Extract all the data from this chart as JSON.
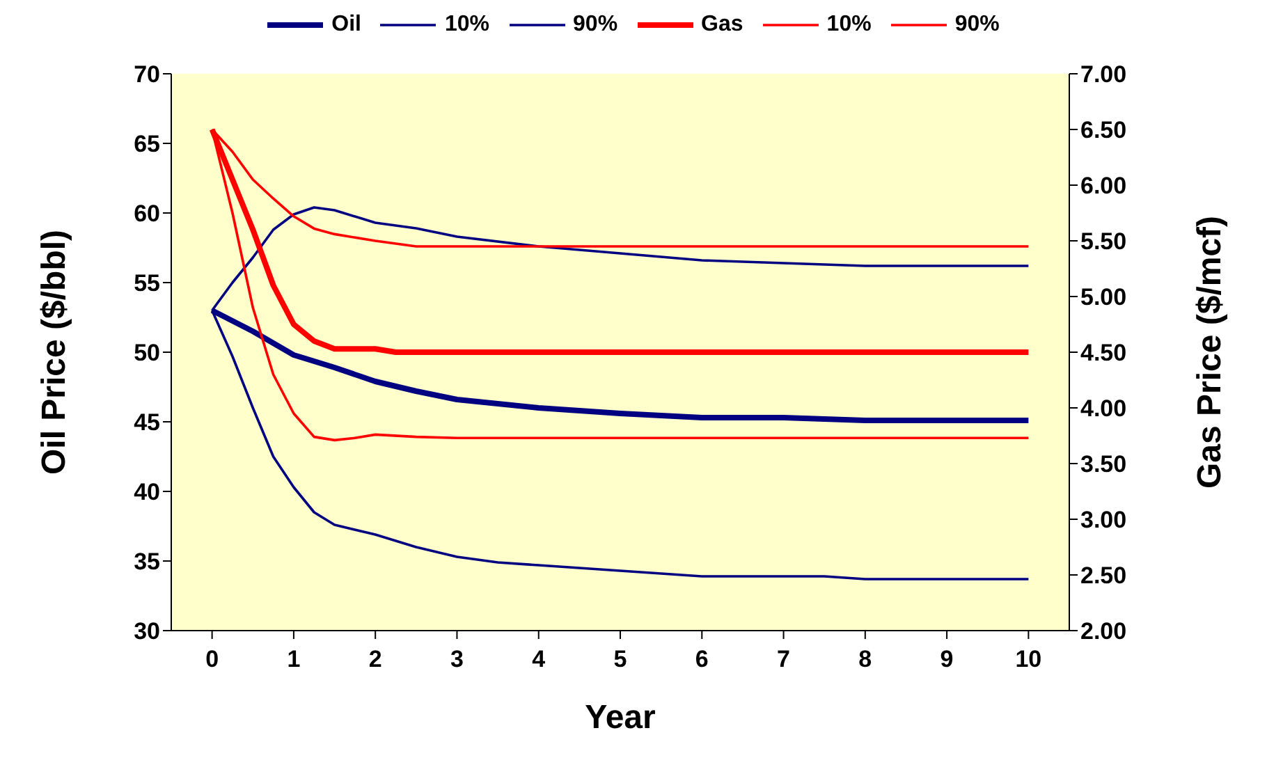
{
  "chart_data": {
    "type": "line",
    "xlabel": "Year",
    "ylabel": "Oil Price ($/bbl)",
    "y2label": "Gas Price ($/mcf)",
    "xlim": [
      -0.5,
      10.5
    ],
    "xticks": [
      0,
      1,
      2,
      3,
      4,
      5,
      6,
      7,
      8,
      9,
      10
    ],
    "ylim": [
      30,
      70
    ],
    "yticks": [
      30,
      35,
      40,
      45,
      50,
      55,
      60,
      65,
      70
    ],
    "y2lim": [
      2,
      7
    ],
    "y2ticks": [
      {
        "value": 2,
        "label": "2.00"
      },
      {
        "value": 2.5,
        "label": "2.50"
      },
      {
        "value": 3,
        "label": "3.00"
      },
      {
        "value": 3.5,
        "label": "3.50"
      },
      {
        "value": 4,
        "label": "4.00"
      },
      {
        "value": 4.5,
        "label": "4.50"
      },
      {
        "value": 5,
        "label": "5.00"
      },
      {
        "value": 5.5,
        "label": "5.50"
      },
      {
        "value": 6,
        "label": "6.00"
      },
      {
        "value": 6.5,
        "label": "6.50"
      },
      {
        "value": 7,
        "label": "7.00"
      }
    ],
    "grid": false,
    "legend": "top",
    "marker": "none",
    "line_style": "solid",
    "series": [
      {
        "name": "Oil",
        "color": "#000080",
        "x": [
          0,
          0.5,
          1,
          1.5,
          2,
          2.5,
          3,
          4,
          5,
          6,
          7,
          8,
          9,
          10
        ],
        "values": [
          53,
          51.5,
          49.8,
          48.9,
          47.9,
          47.2,
          46.6,
          46.0,
          45.6,
          45.3,
          45.3,
          45.1,
          45.1,
          45.1
        ]
      },
      {
        "name": "10%",
        "color": "#000080",
        "x": [
          0,
          0.25,
          0.5,
          0.75,
          1,
          1.25,
          1.5,
          2,
          2.5,
          3,
          3.5,
          4,
          5,
          6,
          7,
          7.5,
          8,
          9,
          10
        ],
        "values": [
          53,
          49.7,
          46,
          42.5,
          40.3,
          38.5,
          37.6,
          36.9,
          36.0,
          35.3,
          34.9,
          34.7,
          34.3,
          33.9,
          33.9,
          33.9,
          33.7,
          33.7,
          33.7
        ]
      },
      {
        "name": "90%",
        "color": "#000080",
        "x": [
          0,
          0.25,
          0.5,
          0.75,
          1,
          1.25,
          1.5,
          2,
          2.5,
          3,
          4,
          5,
          6,
          7,
          8,
          9,
          10
        ],
        "values": [
          53,
          55,
          56.8,
          58.8,
          59.9,
          60.4,
          60.2,
          59.3,
          58.9,
          58.3,
          57.6,
          57.1,
          56.6,
          56.4,
          56.2,
          56.2,
          56.2
        ]
      },
      {
        "name": "Gas",
        "color": "#ff0000",
        "axis": "y2",
        "x": [
          0,
          0.25,
          0.5,
          0.75,
          1,
          1.25,
          1.5,
          2,
          2.25,
          3,
          4,
          5,
          6,
          7,
          8,
          9,
          10
        ],
        "values": [
          6.5,
          6.05,
          5.6,
          5.1,
          4.75,
          4.6,
          4.53,
          4.53,
          4.5,
          4.5,
          4.5,
          4.5,
          4.5,
          4.5,
          4.5,
          4.5,
          4.5
        ]
      },
      {
        "name": "10%",
        "color": "#ff0000",
        "axis": "y2",
        "x": [
          0,
          0.25,
          0.5,
          0.75,
          1,
          1.25,
          1.5,
          1.75,
          2,
          2.5,
          3,
          4,
          5,
          6,
          7,
          8,
          9,
          10
        ],
        "values": [
          6.5,
          5.75,
          4.9,
          4.3,
          3.95,
          3.74,
          3.71,
          3.73,
          3.76,
          3.74,
          3.73,
          3.73,
          3.73,
          3.73,
          3.73,
          3.73,
          3.73,
          3.73
        ]
      },
      {
        "name": "90%",
        "color": "#ff0000",
        "axis": "y2",
        "x": [
          0,
          0.25,
          0.5,
          0.75,
          1,
          1.25,
          1.5,
          2,
          2.5,
          3,
          4,
          5,
          6,
          7,
          8,
          9,
          10
        ],
        "values": [
          6.5,
          6.3,
          6.05,
          5.88,
          5.72,
          5.61,
          5.56,
          5.5,
          5.45,
          5.45,
          5.45,
          5.45,
          5.45,
          5.45,
          5.45,
          5.45,
          5.45
        ]
      }
    ]
  }
}
